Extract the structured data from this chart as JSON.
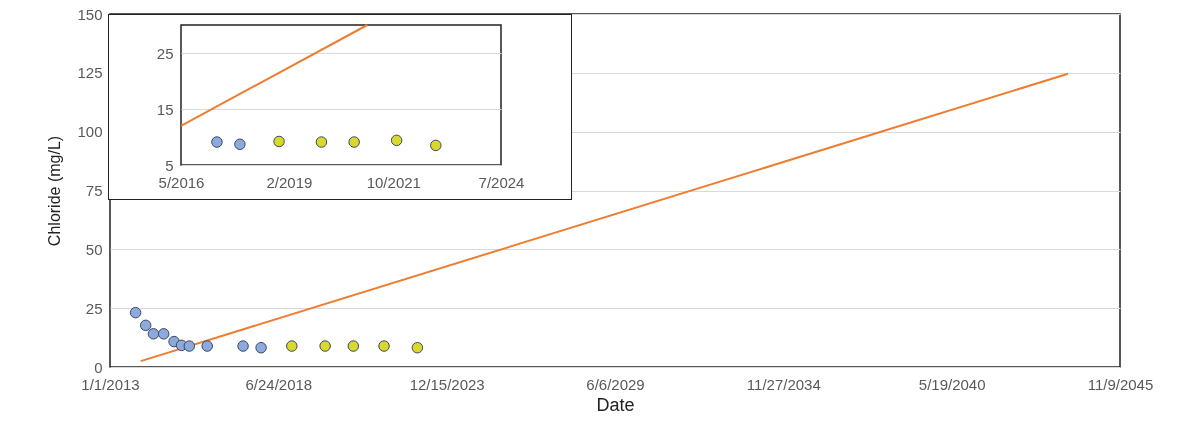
{
  "chart_data": [
    {
      "type": "scatter",
      "xlabel": "Date",
      "ylabel": "Chloride (mg/L)",
      "xlim": [
        "2013-01-01",
        "2045-11-09"
      ],
      "xticks": [
        {
          "value": "2013-01-01",
          "label": "1/1/2013"
        },
        {
          "value": "2018-06-24",
          "label": "6/24/2018"
        },
        {
          "value": "2023-12-15",
          "label": "12/15/2023"
        },
        {
          "value": "2029-06-06",
          "label": "6/6/2029"
        },
        {
          "value": "2034-11-27",
          "label": "11/27/2034"
        },
        {
          "value": "2040-05-19",
          "label": "5/19/2040"
        },
        {
          "value": "2045-11-09",
          "label": "11/9/2045"
        }
      ],
      "ylim": [
        0,
        150
      ],
      "yticks": [
        0,
        25,
        50,
        75,
        100,
        125,
        150
      ],
      "grid": "y",
      "marker": "circle",
      "series": [
        {
          "color": "#8ea9db",
          "x": [
            "2013-11",
            "2014-03",
            "2014-06",
            "2014-10",
            "2015-02",
            "2015-05",
            "2015-08",
            "2016-03",
            "2017-05",
            "2017-12"
          ],
          "values": [
            23.1,
            17.7,
            14.1,
            14.1,
            10.8,
            9.2,
            8.9,
            8.9,
            8.9,
            8.2
          ]
        },
        {
          "color": "#d9d92b",
          "x": [
            "2018-12",
            "2020-01",
            "2020-12",
            "2021-12",
            "2023-01"
          ],
          "values": [
            8.9,
            8.9,
            8.9,
            8.9,
            8.2
          ]
        },
        {
          "type": "line",
          "marker": "none",
          "color": "#ed7d31",
          "x": [
            "2014-01",
            "2044-03"
          ],
          "values": [
            2.5,
            124.6
          ]
        }
      ]
    },
    {
      "type": "scatter",
      "xlim": [
        "2016-05",
        "2024-07"
      ],
      "xticks": [
        {
          "value": "2016-05",
          "label": "5/2016"
        },
        {
          "value": "2019-02",
          "label": "2/2019"
        },
        {
          "value": "2021-10",
          "label": "10/2021"
        },
        {
          "value": "2024-07",
          "label": "7/2024"
        }
      ],
      "ylim": [
        5,
        30
      ],
      "yticks": [
        5,
        15,
        25
      ],
      "grid": "y",
      "marker": "circle",
      "series": [
        {
          "color": "#8ea9db",
          "x": [
            "2017-04",
            "2017-11"
          ],
          "values": [
            9.1,
            8.7
          ]
        },
        {
          "color": "#d9d92b",
          "x": [
            "2018-11",
            "2019-12",
            "2020-10",
            "2021-11",
            "2022-11"
          ],
          "values": [
            9.2,
            9.1,
            9.1,
            9.4,
            8.5
          ]
        },
        {
          "type": "line",
          "marker": "none",
          "color": "#ed7d31",
          "x": [
            "2016-05",
            "2021-02"
          ],
          "values": [
            12,
            30
          ]
        }
      ]
    }
  ]
}
